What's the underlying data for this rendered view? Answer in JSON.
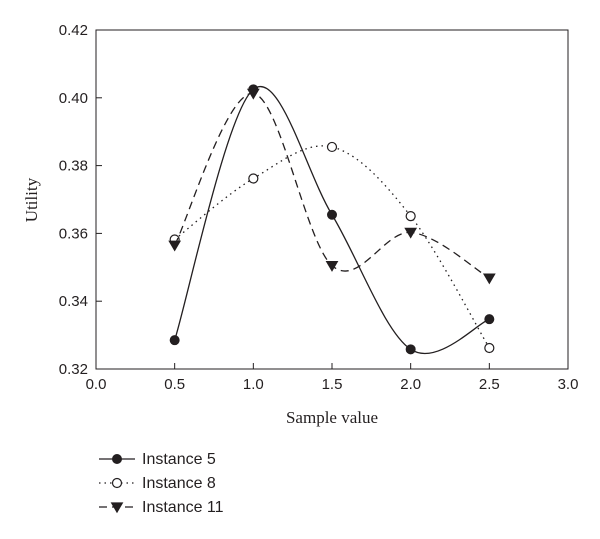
{
  "chart_data": {
    "type": "line",
    "xlabel": "Sample value",
    "ylabel": "Utility",
    "xlim": [
      0.0,
      3.0
    ],
    "ylim": [
      0.32,
      0.42
    ],
    "x_ticks": [
      "0.0",
      "0.5",
      "1.0",
      "1.5",
      "2.0",
      "2.5",
      "3.0"
    ],
    "y_ticks": [
      "0.32",
      "0.34",
      "0.36",
      "0.38",
      "0.40",
      "0.42"
    ],
    "grid": false,
    "legend_position": "bottom-left",
    "x": [
      0.5,
      1.0,
      1.5,
      2.0,
      2.5
    ],
    "series": [
      {
        "name": "Instance 5",
        "marker": "filled-circle",
        "line": "solid",
        "values": [
          0.3285,
          0.4025,
          0.3655,
          0.3258,
          0.3347
        ]
      },
      {
        "name": "Instance 8",
        "marker": "open-circle",
        "line": "dotted",
        "values": [
          0.3582,
          0.3762,
          0.3855,
          0.3651,
          0.3262
        ]
      },
      {
        "name": "Instance 11",
        "marker": "filled-triangle-down",
        "line": "dashed",
        "values": [
          0.3565,
          0.4013,
          0.3505,
          0.3603,
          0.3468
        ]
      }
    ],
    "colors": {
      "ink": "#231f20"
    }
  }
}
